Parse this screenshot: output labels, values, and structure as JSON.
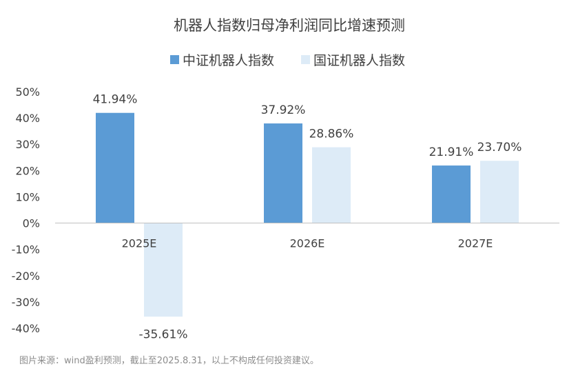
{
  "chart_data": {
    "type": "bar",
    "title": "机器人指数归母净利润同比增速预测",
    "categories": [
      "2025E",
      "2026E",
      "2027E"
    ],
    "series": [
      {
        "name": "中证机器人指数",
        "values": [
          41.94,
          37.92,
          21.91
        ],
        "labels": [
          "41.94%",
          "37.92%",
          "21.91%"
        ],
        "color": "#5b9bd5"
      },
      {
        "name": "国证机器人指数",
        "values": [
          -35.61,
          28.86,
          23.7
        ],
        "labels": [
          "-35.61%",
          "28.86%",
          "23.70%"
        ],
        "color": "#ddebf7"
      }
    ],
    "ylim": [
      -40,
      50
    ],
    "yticks": [
      50,
      40,
      30,
      20,
      10,
      0,
      -10,
      -20,
      -30,
      -40
    ],
    "ytick_labels": [
      "50%",
      "40%",
      "30%",
      "20%",
      "10%",
      "0%",
      "-10%",
      "-20%",
      "-30%",
      "-40%"
    ],
    "xlabel": "",
    "ylabel": "",
    "grid": false,
    "legend": "top-center"
  },
  "source_note": "图片来源：wind盈利预测，截止至2025.8.31，以上不构成任何投资建议。"
}
